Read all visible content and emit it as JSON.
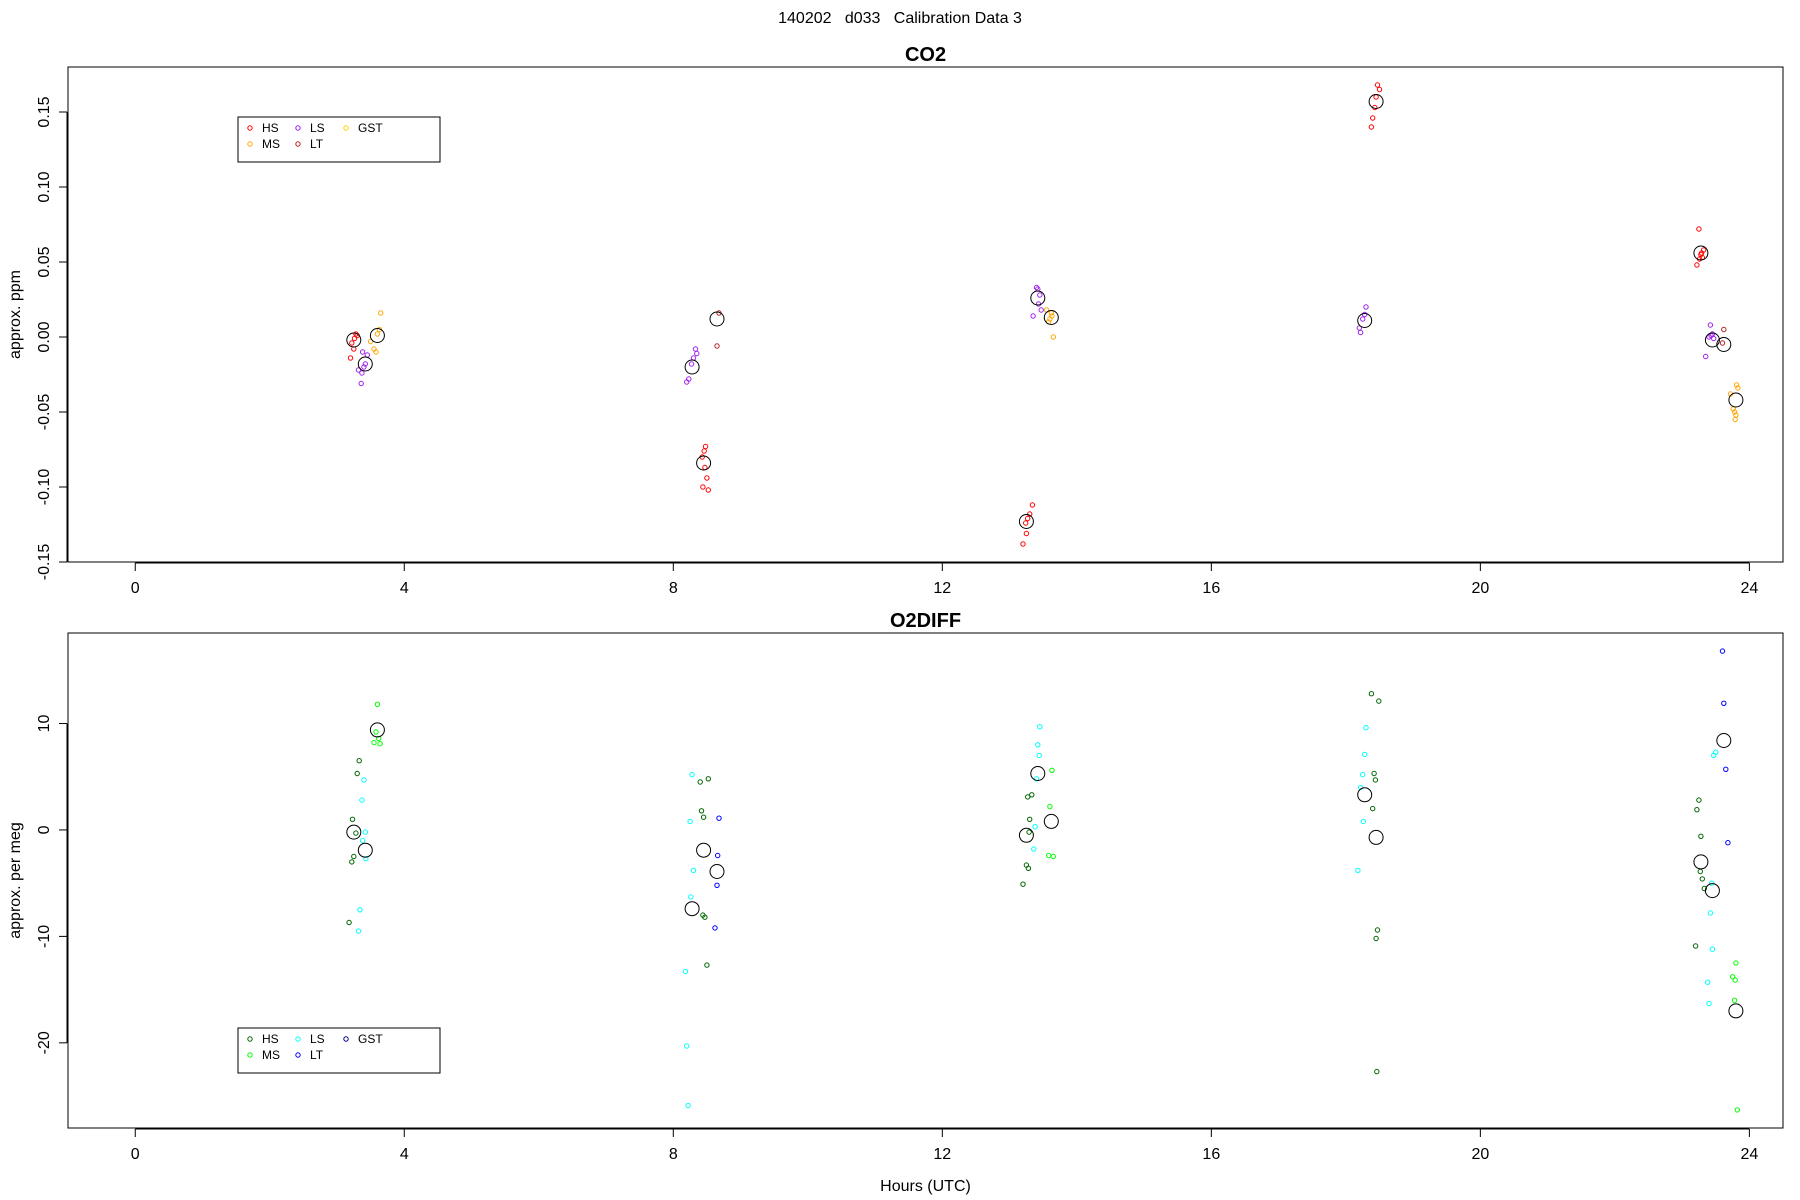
{
  "page_title": "140202   d033   Calibration Data 3",
  "colors": {
    "CO2": {
      "HS": "#ff0000",
      "MS": "#ffa500",
      "LS": "#a020f0",
      "LT": "#b22222",
      "GST": "#ffd700",
      "mean": "#000000"
    },
    "O2DIFF": {
      "HS": "#006400",
      "MS": "#00ff00",
      "LS": "#00ffff",
      "LT": "#0000ff",
      "GST": "#000080",
      "mean": "#000000"
    }
  },
  "chart_data": [
    {
      "type": "scatter",
      "title": "CO2",
      "xlabel": "",
      "ylabel": "approx. ppm",
      "xlim": [
        -1,
        24.5
      ],
      "ylim": [
        -0.15,
        0.18
      ],
      "xticks": [
        0,
        4,
        8,
        12,
        16,
        20,
        24
      ],
      "xtick_labels": [
        "0",
        "4",
        "8",
        "12",
        "16",
        "20",
        "24"
      ],
      "yticks": [
        -0.15,
        -0.1,
        -0.05,
        0.0,
        0.05,
        0.1,
        0.15
      ],
      "ytick_labels": [
        "-0.15",
        "-0.10",
        "-0.05",
        "0.00",
        "0.05",
        "0.10",
        "0.15"
      ],
      "grid": false,
      "legend": {
        "placement": "top-left",
        "entries": [
          "HS",
          "MS",
          "LS",
          "LT",
          "GST"
        ]
      },
      "series": [
        {
          "name": "HS",
          "points": [
            [
              3.22,
              -0.004
            ],
            [
              3.25,
              -0.008
            ],
            [
              3.28,
              0.002
            ],
            [
              3.2,
              -0.014
            ],
            [
              3.3,
              0.001
            ],
            [
              3.26,
              -0.001
            ],
            [
              8.43,
              -0.08
            ],
            [
              8.46,
              -0.076
            ],
            [
              8.48,
              -0.073
            ],
            [
              8.5,
              -0.094
            ],
            [
              8.52,
              -0.102
            ],
            [
              8.44,
              -0.1
            ],
            [
              8.47,
              -0.087
            ],
            [
              13.2,
              -0.138
            ],
            [
              13.25,
              -0.131
            ],
            [
              13.3,
              -0.118
            ],
            [
              13.34,
              -0.112
            ],
            [
              13.27,
              -0.121
            ],
            [
              13.24,
              -0.124
            ],
            [
              18.38,
              0.14
            ],
            [
              18.4,
              0.146
            ],
            [
              18.43,
              0.153
            ],
            [
              18.45,
              0.16
            ],
            [
              18.47,
              0.168
            ],
            [
              18.5,
              0.165
            ],
            [
              23.22,
              0.048
            ],
            [
              23.26,
              0.052
            ],
            [
              23.28,
              0.055
            ],
            [
              23.3,
              0.053
            ],
            [
              23.25,
              0.072
            ],
            [
              23.32,
              0.058
            ],
            [
              23.29,
              0.056
            ]
          ]
        },
        {
          "name": "MS",
          "points": [
            [
              3.5,
              -0.003
            ],
            [
              3.55,
              -0.008
            ],
            [
              3.6,
              0.002
            ],
            [
              3.63,
              0.005
            ],
            [
              3.65,
              0.016
            ],
            [
              3.58,
              -0.01
            ],
            [
              13.55,
              0.018
            ],
            [
              13.6,
              0.012
            ],
            [
              13.62,
              0.016
            ],
            [
              13.65,
              0.0
            ],
            [
              13.58,
              0.01
            ],
            [
              13.63,
              0.014
            ],
            [
              23.72,
              -0.038
            ],
            [
              23.76,
              -0.048
            ],
            [
              23.78,
              -0.05
            ],
            [
              23.8,
              -0.052
            ],
            [
              23.83,
              -0.034
            ],
            [
              23.79,
              -0.055
            ],
            [
              23.81,
              -0.032
            ]
          ]
        },
        {
          "name": "LS",
          "points": [
            [
              3.32,
              -0.022
            ],
            [
              3.36,
              -0.031
            ],
            [
              3.38,
              -0.01
            ],
            [
              3.42,
              -0.018
            ],
            [
              3.45,
              -0.012
            ],
            [
              3.4,
              -0.02
            ],
            [
              3.37,
              -0.024
            ],
            [
              8.2,
              -0.03
            ],
            [
              8.23,
              -0.028
            ],
            [
              8.27,
              -0.018
            ],
            [
              8.3,
              -0.014
            ],
            [
              8.33,
              -0.008
            ],
            [
              8.35,
              -0.011
            ],
            [
              13.35,
              0.014
            ],
            [
              13.4,
              0.033
            ],
            [
              13.42,
              0.032
            ],
            [
              13.45,
              0.028
            ],
            [
              13.47,
              0.018
            ],
            [
              13.43,
              0.022
            ],
            [
              18.2,
              0.006
            ],
            [
              18.22,
              0.003
            ],
            [
              18.25,
              0.012
            ],
            [
              18.3,
              0.02
            ],
            [
              18.28,
              0.015
            ],
            [
              23.35,
              -0.013
            ],
            [
              23.4,
              0.0
            ],
            [
              23.42,
              0.008
            ],
            [
              23.45,
              0.002
            ],
            [
              23.47,
              -0.001
            ],
            [
              23.43,
              0.001
            ]
          ]
        },
        {
          "name": "LT",
          "points": [
            [
              8.65,
              -0.006
            ],
            [
              8.68,
              0.016
            ],
            [
              23.6,
              -0.004
            ],
            [
              23.62,
              0.005
            ]
          ]
        },
        {
          "name": "GST",
          "points": []
        },
        {
          "name": "",
          "marker": "mean",
          "points": [
            [
              3.25,
              -0.002
            ],
            [
              3.42,
              -0.018
            ],
            [
              3.6,
              0.001
            ],
            [
              8.28,
              -0.02
            ],
            [
              8.45,
              -0.084
            ],
            [
              8.65,
              0.012
            ],
            [
              13.25,
              -0.123
            ],
            [
              13.42,
              0.026
            ],
            [
              13.62,
              0.013
            ],
            [
              18.28,
              0.011
            ],
            [
              18.45,
              0.157
            ],
            [
              23.28,
              0.056
            ],
            [
              23.45,
              -0.002
            ],
            [
              23.62,
              -0.005
            ],
            [
              23.8,
              -0.042
            ]
          ]
        }
      ]
    },
    {
      "type": "scatter",
      "title": "O2DIFF",
      "xlabel": "Hours (UTC)",
      "ylabel": "approx. per meg",
      "xlim": [
        -1,
        24.5
      ],
      "ylim": [
        -28,
        18.5
      ],
      "xticks": [
        0,
        4,
        8,
        12,
        16,
        20,
        24
      ],
      "xtick_labels": [
        "0",
        "4",
        "8",
        "12",
        "16",
        "20",
        "24"
      ],
      "yticks": [
        -20,
        -10,
        0,
        10
      ],
      "ytick_labels": [
        "-20",
        "-10",
        "0",
        "10"
      ],
      "grid": false,
      "legend": {
        "placement": "bottom-left",
        "entries": [
          "HS",
          "MS",
          "LS",
          "LT",
          "GST"
        ]
      },
      "series": [
        {
          "name": "HS",
          "points": [
            [
              3.18,
              -8.7
            ],
            [
              3.22,
              -3.0
            ],
            [
              3.25,
              -2.5
            ],
            [
              3.28,
              -0.3
            ],
            [
              3.3,
              5.3
            ],
            [
              3.33,
              6.5
            ],
            [
              3.23,
              1.0
            ],
            [
              8.4,
              4.5
            ],
            [
              8.42,
              1.8
            ],
            [
              8.45,
              1.2
            ],
            [
              8.47,
              -8.2
            ],
            [
              8.5,
              -12.7
            ],
            [
              8.52,
              4.8
            ],
            [
              8.44,
              -8.0
            ],
            [
              13.2,
              -5.1
            ],
            [
              13.25,
              -3.3
            ],
            [
              13.28,
              -3.6
            ],
            [
              13.3,
              1.0
            ],
            [
              13.33,
              3.3
            ],
            [
              13.27,
              3.1
            ],
            [
              13.29,
              -0.2
            ],
            [
              18.38,
              12.8
            ],
            [
              18.4,
              2.0
            ],
            [
              18.42,
              5.3
            ],
            [
              18.44,
              4.7
            ],
            [
              18.45,
              -10.2
            ],
            [
              18.47,
              -9.4
            ],
            [
              18.49,
              12.1
            ],
            [
              18.46,
              -22.7
            ],
            [
              23.2,
              -10.9
            ],
            [
              23.22,
              1.9
            ],
            [
              23.25,
              2.8
            ],
            [
              23.27,
              -3.9
            ],
            [
              23.3,
              -4.6
            ],
            [
              23.33,
              -5.5
            ],
            [
              23.28,
              -0.6
            ]
          ]
        },
        {
          "name": "MS",
          "points": [
            [
              3.55,
              8.2
            ],
            [
              3.6,
              11.8
            ],
            [
              3.62,
              8.6
            ],
            [
              3.64,
              8.1
            ],
            [
              3.58,
              9.2
            ],
            [
              13.58,
              -2.4
            ],
            [
              13.6,
              2.2
            ],
            [
              13.63,
              5.6
            ],
            [
              13.65,
              -2.5
            ],
            [
              23.75,
              -13.8
            ],
            [
              23.78,
              -16.0
            ],
            [
              23.8,
              -12.5
            ],
            [
              23.82,
              -26.3
            ],
            [
              23.79,
              -14.1
            ]
          ]
        },
        {
          "name": "LS",
          "points": [
            [
              3.32,
              -9.5
            ],
            [
              3.34,
              -7.5
            ],
            [
              3.37,
              2.8
            ],
            [
              3.4,
              4.7
            ],
            [
              3.42,
              -0.2
            ],
            [
              3.43,
              -2.7
            ],
            [
              3.38,
              -1.0
            ],
            [
              8.18,
              -13.3
            ],
            [
              8.2,
              -20.3
            ],
            [
              8.22,
              -25.9
            ],
            [
              8.25,
              0.8
            ],
            [
              8.28,
              5.2
            ],
            [
              8.3,
              -3.8
            ],
            [
              8.26,
              -6.3
            ],
            [
              13.38,
              0.3
            ],
            [
              13.4,
              4.8
            ],
            [
              13.42,
              8.0
            ],
            [
              13.45,
              9.7
            ],
            [
              13.44,
              7.0
            ],
            [
              13.36,
              -1.8
            ],
            [
              18.18,
              -3.8
            ],
            [
              18.22,
              4.0
            ],
            [
              18.25,
              5.2
            ],
            [
              18.3,
              9.6
            ],
            [
              18.28,
              7.1
            ],
            [
              18.26,
              0.8
            ],
            [
              23.38,
              -14.3
            ],
            [
              23.4,
              -16.3
            ],
            [
              23.42,
              -7.8
            ],
            [
              23.45,
              -11.2
            ],
            [
              23.47,
              7.0
            ],
            [
              23.5,
              7.3
            ],
            [
              23.44,
              -5.0
            ]
          ]
        },
        {
          "name": "LT",
          "points": [
            [
              8.62,
              -9.2
            ],
            [
              8.65,
              -5.2
            ],
            [
              8.68,
              1.1
            ],
            [
              8.66,
              -2.4
            ],
            [
              23.6,
              16.8
            ],
            [
              23.62,
              11.9
            ],
            [
              23.65,
              5.7
            ],
            [
              23.68,
              -1.2
            ]
          ]
        },
        {
          "name": "GST",
          "points": []
        },
        {
          "name": "",
          "marker": "mean",
          "points": [
            [
              3.25,
              -0.2
            ],
            [
              3.42,
              -1.9
            ],
            [
              3.6,
              9.4
            ],
            [
              8.28,
              -7.4
            ],
            [
              8.45,
              -1.9
            ],
            [
              8.65,
              -3.9
            ],
            [
              13.25,
              -0.5
            ],
            [
              13.42,
              5.3
            ],
            [
              13.62,
              0.8
            ],
            [
              18.28,
              3.3
            ],
            [
              18.45,
              -0.7
            ],
            [
              23.28,
              -3.0
            ],
            [
              23.45,
              -5.7
            ],
            [
              23.62,
              8.4
            ],
            [
              23.8,
              -17.0
            ]
          ]
        }
      ]
    }
  ]
}
